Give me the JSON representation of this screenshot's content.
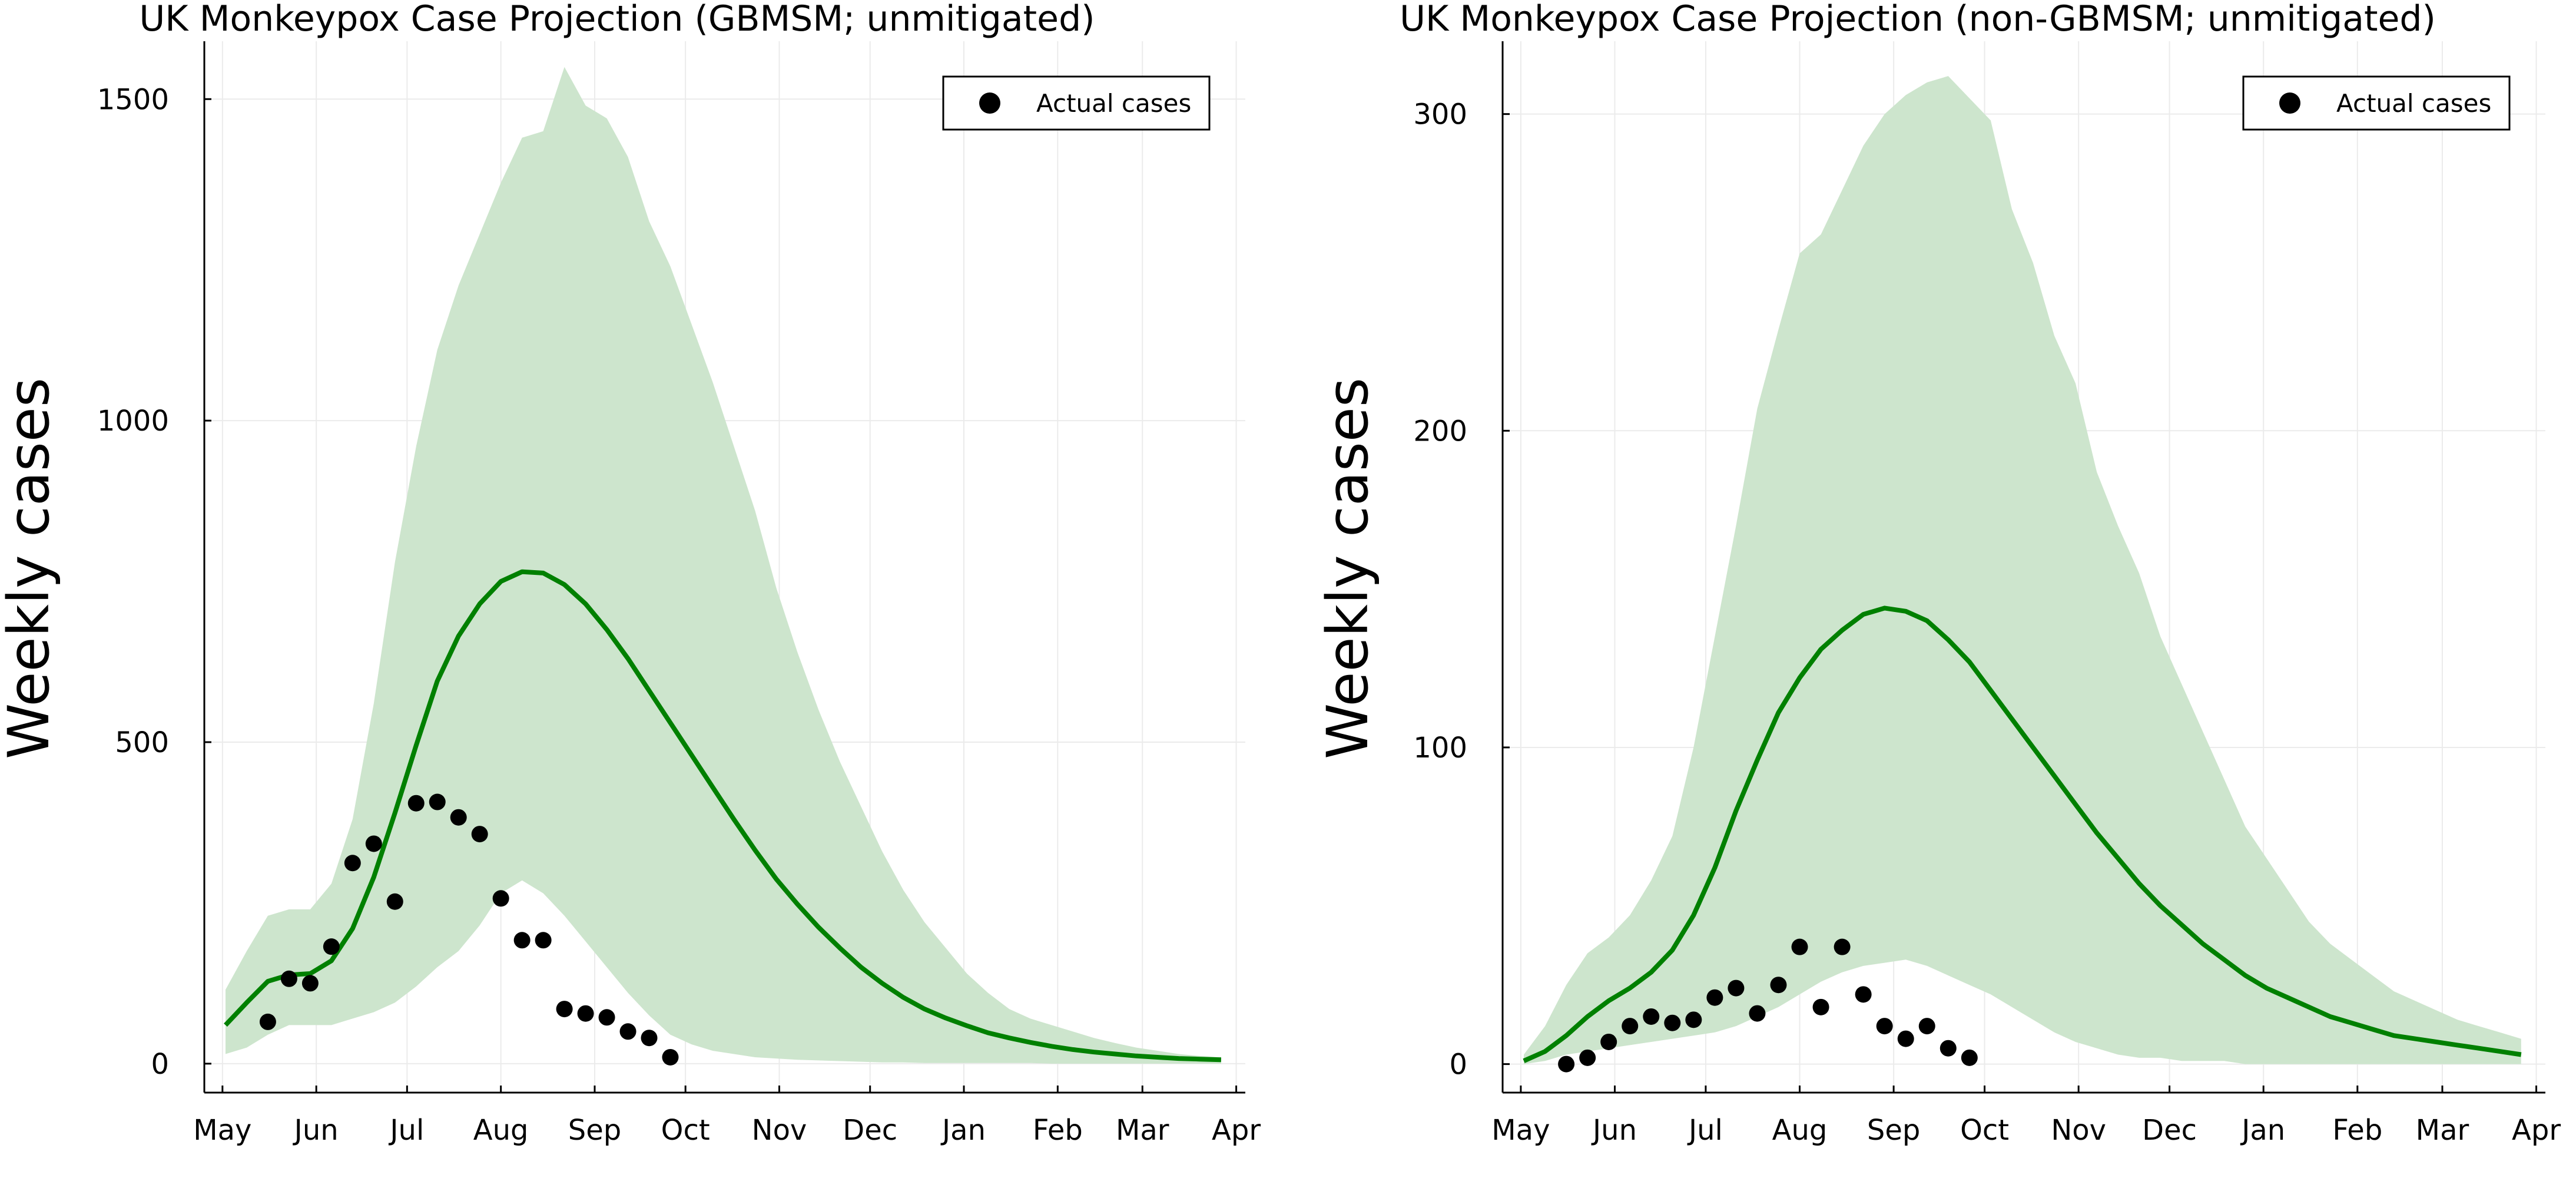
{
  "chart_data": [
    {
      "type": "line",
      "title": "UK Monkeypox Case Projection (GBMSM; unmitigated)",
      "xlabel": "",
      "ylabel": "Weekly cases",
      "xlim": [
        "2022-04-25",
        "2023-04-04"
      ],
      "ylim": [
        -45,
        1590
      ],
      "yticks": [
        0,
        500,
        1000,
        1500
      ],
      "xticks": [
        {
          "date": "2022-05-01",
          "label": "May"
        },
        {
          "date": "2022-06-01",
          "label": "Jun"
        },
        {
          "date": "2022-07-01",
          "label": "Jul"
        },
        {
          "date": "2022-08-01",
          "label": "Aug"
        },
        {
          "date": "2022-09-01",
          "label": "Sep"
        },
        {
          "date": "2022-10-01",
          "label": "Oct"
        },
        {
          "date": "2022-11-01",
          "label": "Nov"
        },
        {
          "date": "2022-12-01",
          "label": "Dec"
        },
        {
          "date": "2023-01-01",
          "label": "Jan"
        },
        {
          "date": "2023-02-01",
          "label": "Feb"
        },
        {
          "date": "2023-03-01",
          "label": "Mar"
        },
        {
          "date": "2023-04-01",
          "label": "Apr"
        }
      ],
      "grid": true,
      "legend": {
        "position": "top-right",
        "entries": [
          "Actual cases"
        ]
      },
      "colors": {
        "median": "#008000",
        "band": "#cde5cd",
        "points": "#000000"
      },
      "median": {
        "x": [
          "2022-05-02",
          "2022-05-09",
          "2022-05-16",
          "2022-05-23",
          "2022-05-30",
          "2022-06-06",
          "2022-06-13",
          "2022-06-20",
          "2022-06-27",
          "2022-07-04",
          "2022-07-11",
          "2022-07-18",
          "2022-07-25",
          "2022-08-01",
          "2022-08-08",
          "2022-08-15",
          "2022-08-22",
          "2022-08-29",
          "2022-09-05",
          "2022-09-12",
          "2022-09-19",
          "2022-09-26",
          "2022-10-03",
          "2022-10-10",
          "2022-10-17",
          "2022-10-24",
          "2022-10-31",
          "2022-11-07",
          "2022-11-14",
          "2022-11-21",
          "2022-11-28",
          "2022-12-05",
          "2022-12-12",
          "2022-12-19",
          "2022-12-26",
          "2023-01-02",
          "2023-01-09",
          "2023-01-16",
          "2023-01-23",
          "2023-01-30",
          "2023-02-06",
          "2023-02-13",
          "2023-02-20",
          "2023-02-27",
          "2023-03-06",
          "2023-03-13",
          "2023-03-20",
          "2023-03-27"
        ],
        "y": [
          60,
          95,
          128,
          138,
          140,
          160,
          210,
          290,
          390,
          495,
          595,
          665,
          715,
          750,
          765,
          763,
          745,
          715,
          675,
          630,
          580,
          530,
          480,
          430,
          380,
          332,
          287,
          248,
          212,
          180,
          150,
          125,
          103,
          85,
          71,
          59,
          48,
          40,
          33,
          27,
          22,
          18,
          15,
          12,
          10,
          8,
          7,
          6
        ]
      },
      "band": {
        "x": [
          "2022-05-02",
          "2022-05-09",
          "2022-05-16",
          "2022-05-23",
          "2022-05-30",
          "2022-06-06",
          "2022-06-13",
          "2022-06-20",
          "2022-06-27",
          "2022-07-04",
          "2022-07-11",
          "2022-07-18",
          "2022-07-25",
          "2022-08-01",
          "2022-08-08",
          "2022-08-15",
          "2022-08-22",
          "2022-08-29",
          "2022-09-05",
          "2022-09-12",
          "2022-09-19",
          "2022-09-26",
          "2022-10-03",
          "2022-10-10",
          "2022-10-17",
          "2022-10-24",
          "2022-10-31",
          "2022-11-07",
          "2022-11-14",
          "2022-11-21",
          "2022-11-28",
          "2022-12-05",
          "2022-12-12",
          "2022-12-19",
          "2022-12-26",
          "2023-01-02",
          "2023-01-09",
          "2023-01-16",
          "2023-01-23",
          "2023-01-30",
          "2023-02-06",
          "2023-02-13",
          "2023-02-20",
          "2023-02-27",
          "2023-03-06",
          "2023-03-13",
          "2023-03-20",
          "2023-03-27"
        ],
        "lower": [
          15,
          25,
          45,
          60,
          60,
          60,
          70,
          80,
          95,
          120,
          150,
          175,
          215,
          265,
          285,
          265,
          230,
          190,
          150,
          110,
          75,
          45,
          30,
          20,
          15,
          10,
          8,
          6,
          5,
          4,
          3,
          2,
          2,
          1,
          1,
          1,
          1,
          1,
          1,
          0,
          0,
          0,
          0,
          0,
          0,
          0,
          0,
          0
        ],
        "upper": [
          115,
          175,
          230,
          240,
          240,
          280,
          380,
          560,
          780,
          960,
          1110,
          1210,
          1290,
          1370,
          1440,
          1450,
          1550,
          1490,
          1470,
          1410,
          1310,
          1240,
          1150,
          1060,
          960,
          860,
          740,
          640,
          550,
          470,
          400,
          330,
          270,
          220,
          180,
          140,
          110,
          85,
          70,
          60,
          50,
          40,
          32,
          25,
          20,
          15,
          12,
          10
        ]
      },
      "actual": {
        "x": [
          "2022-05-16",
          "2022-05-23",
          "2022-05-30",
          "2022-06-06",
          "2022-06-13",
          "2022-06-20",
          "2022-06-27",
          "2022-07-04",
          "2022-07-11",
          "2022-07-18",
          "2022-07-25",
          "2022-08-01",
          "2022-08-08",
          "2022-08-15",
          "2022-08-22",
          "2022-08-29",
          "2022-09-05",
          "2022-09-12",
          "2022-09-19",
          "2022-09-26"
        ],
        "y": [
          65,
          132,
          125,
          182,
          312,
          342,
          252,
          405,
          407,
          383,
          357,
          257,
          192,
          192,
          85,
          78,
          72,
          50,
          40,
          10
        ]
      }
    },
    {
      "type": "line",
      "title": "UK Monkeypox Case Projection (non-GBMSM; unmitigated)",
      "xlabel": "",
      "ylabel": "Weekly cases",
      "xlim": [
        "2022-04-25",
        "2023-04-04"
      ],
      "ylim": [
        -9,
        323
      ],
      "yticks": [
        0,
        100,
        200,
        300
      ],
      "xticks": [
        {
          "date": "2022-05-01",
          "label": "May"
        },
        {
          "date": "2022-06-01",
          "label": "Jun"
        },
        {
          "date": "2022-07-01",
          "label": "Jul"
        },
        {
          "date": "2022-08-01",
          "label": "Aug"
        },
        {
          "date": "2022-09-01",
          "label": "Sep"
        },
        {
          "date": "2022-10-01",
          "label": "Oct"
        },
        {
          "date": "2022-11-01",
          "label": "Nov"
        },
        {
          "date": "2022-12-01",
          "label": "Dec"
        },
        {
          "date": "2023-01-01",
          "label": "Jan"
        },
        {
          "date": "2023-02-01",
          "label": "Feb"
        },
        {
          "date": "2023-03-01",
          "label": "Mar"
        },
        {
          "date": "2023-04-01",
          "label": "Apr"
        }
      ],
      "grid": true,
      "legend": {
        "position": "top-right",
        "entries": [
          "Actual cases"
        ]
      },
      "colors": {
        "median": "#008000",
        "band": "#cde5cd",
        "points": "#000000"
      },
      "median": {
        "x": [
          "2022-05-02",
          "2022-05-09",
          "2022-05-16",
          "2022-05-23",
          "2022-05-30",
          "2022-06-06",
          "2022-06-13",
          "2022-06-20",
          "2022-06-27",
          "2022-07-04",
          "2022-07-11",
          "2022-07-18",
          "2022-07-25",
          "2022-08-01",
          "2022-08-08",
          "2022-08-15",
          "2022-08-22",
          "2022-08-29",
          "2022-09-05",
          "2022-09-12",
          "2022-09-19",
          "2022-09-26",
          "2022-10-03",
          "2022-10-10",
          "2022-10-17",
          "2022-10-24",
          "2022-10-31",
          "2022-11-07",
          "2022-11-14",
          "2022-11-21",
          "2022-11-28",
          "2022-12-05",
          "2022-12-12",
          "2022-12-19",
          "2022-12-26",
          "2023-01-02",
          "2023-01-09",
          "2023-01-16",
          "2023-01-23",
          "2023-01-30",
          "2023-02-06",
          "2023-02-13",
          "2023-02-20",
          "2023-02-27",
          "2023-03-06",
          "2023-03-13",
          "2023-03-20",
          "2023-03-27"
        ],
        "y": [
          1,
          4,
          9,
          15,
          20,
          24,
          29,
          36,
          47,
          62,
          80,
          96,
          111,
          122,
          131,
          137,
          142,
          144,
          143,
          140,
          134,
          127,
          118,
          109,
          100,
          91,
          82,
          73,
          65,
          57,
          50,
          44,
          38,
          33,
          28,
          24,
          21,
          18,
          15,
          13,
          11,
          9,
          8,
          7,
          6,
          5,
          4,
          3
        ]
      },
      "band": {
        "x": [
          "2022-05-02",
          "2022-05-09",
          "2022-05-16",
          "2022-05-23",
          "2022-05-30",
          "2022-06-06",
          "2022-06-13",
          "2022-06-20",
          "2022-06-27",
          "2022-07-04",
          "2022-07-11",
          "2022-07-18",
          "2022-07-25",
          "2022-08-01",
          "2022-08-08",
          "2022-08-15",
          "2022-08-22",
          "2022-08-29",
          "2022-09-05",
          "2022-09-12",
          "2022-09-19",
          "2022-09-26",
          "2022-10-03",
          "2022-10-10",
          "2022-10-17",
          "2022-10-24",
          "2022-10-31",
          "2022-11-07",
          "2022-11-14",
          "2022-11-21",
          "2022-11-28",
          "2022-12-05",
          "2022-12-12",
          "2022-12-19",
          "2022-12-26",
          "2023-01-02",
          "2023-01-09",
          "2023-01-16",
          "2023-01-23",
          "2023-01-30",
          "2023-02-06",
          "2023-02-13",
          "2023-02-20",
          "2023-02-27",
          "2023-03-06",
          "2023-03-13",
          "2023-03-20",
          "2023-03-27"
        ],
        "lower": [
          0,
          1,
          3,
          4,
          5,
          6,
          7,
          8,
          9,
          10,
          12,
          15,
          18,
          22,
          26,
          29,
          31,
          32,
          33,
          31,
          28,
          25,
          22,
          18,
          14,
          10,
          7,
          5,
          3,
          2,
          2,
          1,
          1,
          1,
          0,
          0,
          0,
          0,
          0,
          0,
          0,
          0,
          0,
          0,
          0,
          0,
          0,
          0
        ],
        "upper": [
          3,
          12,
          25,
          35,
          40,
          47,
          58,
          72,
          100,
          135,
          170,
          207,
          232,
          256,
          262,
          276,
          290,
          300,
          306,
          310,
          312,
          305,
          298,
          270,
          253,
          230,
          215,
          187,
          170,
          155,
          135,
          120,
          105,
          90,
          75,
          65,
          55,
          45,
          38,
          33,
          28,
          23,
          20,
          17,
          14,
          12,
          10,
          8
        ]
      },
      "actual": {
        "x": [
          "2022-05-16",
          "2022-05-23",
          "2022-05-30",
          "2022-06-06",
          "2022-06-13",
          "2022-06-20",
          "2022-06-27",
          "2022-07-04",
          "2022-07-11",
          "2022-07-18",
          "2022-07-25",
          "2022-08-01",
          "2022-08-08",
          "2022-08-15",
          "2022-08-22",
          "2022-08-29",
          "2022-09-05",
          "2022-09-12",
          "2022-09-19",
          "2022-09-26"
        ],
        "y": [
          0,
          2,
          7,
          12,
          15,
          13,
          14,
          21,
          24,
          16,
          25,
          37,
          18,
          37,
          22,
          12,
          8,
          12,
          5,
          2
        ]
      }
    }
  ]
}
